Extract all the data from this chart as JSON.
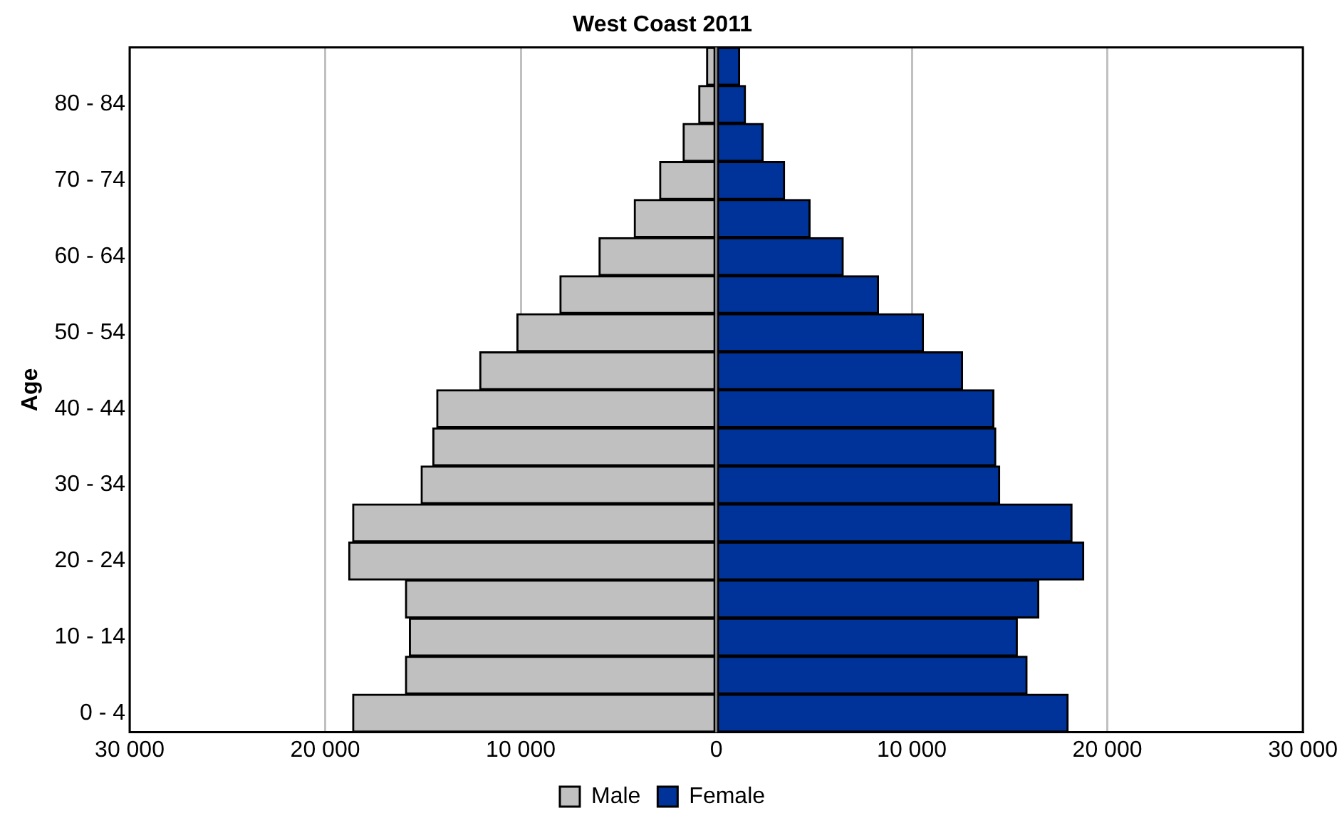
{
  "chart_data": {
    "type": "bar",
    "orientation": "horizontal",
    "stacked": true,
    "title": "West Coast 2011",
    "ylabel": "Age",
    "categories": [
      null,
      "80 - 84",
      null,
      "70 - 74",
      null,
      "60 - 64",
      null,
      "50 - 54",
      null,
      "40 - 44",
      null,
      "30 - 34",
      null,
      "20 - 24",
      null,
      "10 - 14",
      null,
      "0 - 4"
    ],
    "series": [
      {
        "name": "Male",
        "color": "#c0c0c0",
        "values": [
          -500,
          -900,
          -1700,
          -2900,
          -4200,
          -6000,
          -8000,
          -10200,
          -12100,
          -14300,
          -14500,
          -15100,
          -18600,
          -18800,
          -15900,
          -15700,
          -15900,
          -18600
        ]
      },
      {
        "name": "Female",
        "color": "#003399",
        "values": [
          1200,
          1500,
          2400,
          3500,
          4800,
          6500,
          8300,
          10600,
          12600,
          14200,
          14300,
          14500,
          18200,
          18800,
          16500,
          15400,
          15900,
          18000
        ]
      }
    ],
    "xlim": [
      -30000,
      30000
    ],
    "xticks": [
      {
        "value": -30000,
        "label": "30 000"
      },
      {
        "value": -20000,
        "label": "20 000"
      },
      {
        "value": -10000,
        "label": "10 000"
      },
      0,
      {
        "value": 10000,
        "label": "10 000"
      },
      {
        "value": 20000,
        "label": "20 000"
      },
      {
        "value": 30000,
        "label": "30 000"
      }
    ],
    "grid": "x",
    "legend": "bottom"
  }
}
